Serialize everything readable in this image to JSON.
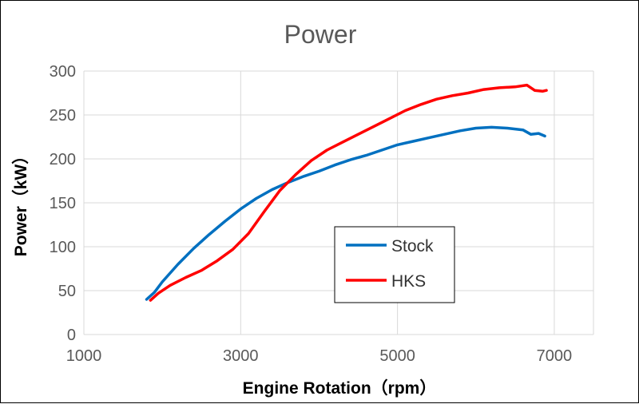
{
  "chart_data": {
    "type": "line",
    "title": "Power",
    "xlabel": "Engine Rotation（rpm）",
    "ylabel": "Power（kW）",
    "xlim": [
      1000,
      7500
    ],
    "ylim": [
      0,
      300
    ],
    "xticks": [
      1000,
      3000,
      5000,
      7000
    ],
    "yticks": [
      0,
      50,
      100,
      150,
      200,
      250,
      300
    ],
    "xtick_labels": [
      "1000",
      "3000",
      "5000",
      "7000"
    ],
    "ytick_labels": [
      "0",
      "50",
      "100",
      "150",
      "200",
      "250",
      "300"
    ],
    "grid": {
      "horizontal": true,
      "vertical": true
    },
    "legend_position": "center-right",
    "series": [
      {
        "name": "Stock",
        "color": "#0070C0",
        "x": [
          1800,
          1900,
          2000,
          2200,
          2400,
          2600,
          2800,
          3000,
          3200,
          3400,
          3600,
          3800,
          4000,
          4200,
          4400,
          4600,
          4800,
          5000,
          5200,
          5400,
          5600,
          5800,
          6000,
          6200,
          6400,
          6600,
          6700,
          6800,
          6880
        ],
        "y": [
          40,
          48,
          60,
          80,
          98,
          114,
          129,
          143,
          155,
          165,
          173,
          180,
          186,
          193,
          199,
          204,
          210,
          216,
          220,
          224,
          228,
          232,
          235,
          236,
          235,
          233,
          228,
          229,
          226
        ]
      },
      {
        "name": "HKS",
        "color": "#FF0000",
        "x": [
          1850,
          1950,
          2100,
          2300,
          2500,
          2700,
          2900,
          3100,
          3300,
          3500,
          3700,
          3900,
          4100,
          4300,
          4500,
          4700,
          4900,
          5100,
          5300,
          5500,
          5700,
          5900,
          6100,
          6300,
          6500,
          6650,
          6750,
          6850,
          6900
        ],
        "y": [
          39,
          47,
          56,
          65,
          73,
          84,
          97,
          115,
          140,
          164,
          182,
          198,
          210,
          219,
          228,
          237,
          246,
          255,
          262,
          268,
          272,
          275,
          279,
          281,
          282,
          284,
          278,
          277,
          278
        ]
      }
    ]
  }
}
